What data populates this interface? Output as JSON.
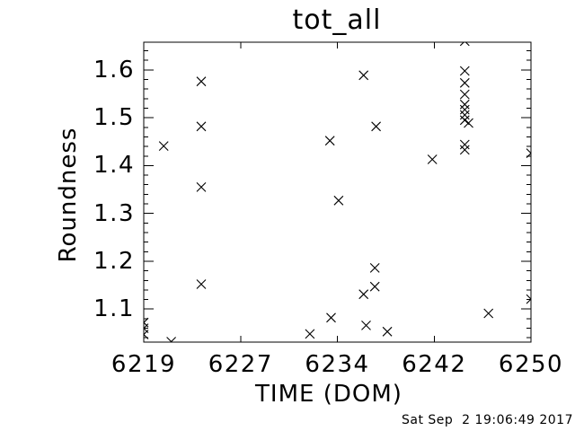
{
  "window": {
    "background_color": "#ffffff",
    "foreground_color": "#000000"
  },
  "chart_data": {
    "type": "scatter",
    "title": "tot_all",
    "xlabel": "TIME (DOM)",
    "ylabel": "Roundness",
    "xlim": [
      6219,
      6250
    ],
    "ylim": [
      1.031,
      1.658
    ],
    "grid": false,
    "legend": "none",
    "marker": "x",
    "marker_color": "#000000",
    "x_ticks": [
      {
        "value": 6219.0,
        "label": "6219"
      },
      {
        "value": 6226.75,
        "label": "6227"
      },
      {
        "value": 6234.5,
        "label": "6234"
      },
      {
        "value": 6242.25,
        "label": "6242"
      },
      {
        "value": 6250.0,
        "label": "6250"
      }
    ],
    "y_ticks": [
      {
        "value": 1.1,
        "label": "1.1"
      },
      {
        "value": 1.2,
        "label": "1.2"
      },
      {
        "value": 1.3,
        "label": "1.3"
      },
      {
        "value": 1.4,
        "label": "1.4"
      },
      {
        "value": 1.5,
        "label": "1.5"
      },
      {
        "value": 1.6,
        "label": "1.6"
      }
    ],
    "y_minor_step": 0.02,
    "points": [
      [
        6220.6,
        1.441
      ],
      [
        6223.6,
        1.576
      ],
      [
        6223.6,
        1.482
      ],
      [
        6223.6,
        1.355
      ],
      [
        6223.6,
        1.152
      ],
      [
        6219.0,
        1.072
      ],
      [
        6219.0,
        1.06
      ],
      [
        6219.0,
        1.047
      ],
      [
        6221.2,
        1.032
      ],
      [
        6232.3,
        1.048
      ],
      [
        6234.0,
        1.082
      ],
      [
        6233.9,
        1.452
      ],
      [
        6234.6,
        1.327
      ],
      [
        6236.6,
        1.589
      ],
      [
        6236.6,
        1.131
      ],
      [
        6236.8,
        1.066
      ],
      [
        6237.5,
        1.186
      ],
      [
        6237.5,
        1.147
      ],
      [
        6237.6,
        1.482
      ],
      [
        6238.5,
        1.053
      ],
      [
        6242.1,
        1.413
      ],
      [
        6244.7,
        1.66
      ],
      [
        6244.7,
        1.598
      ],
      [
        6244.7,
        1.573
      ],
      [
        6244.7,
        1.549
      ],
      [
        6244.7,
        1.528
      ],
      [
        6244.7,
        1.517
      ],
      [
        6244.7,
        1.506
      ],
      [
        6244.7,
        1.495
      ],
      [
        6245.0,
        1.489
      ],
      [
        6244.7,
        1.444
      ],
      [
        6244.7,
        1.433
      ],
      [
        6246.6,
        1.091
      ],
      [
        6250.0,
        1.426
      ],
      [
        6250.0,
        1.121
      ]
    ]
  },
  "footer": {
    "timestamp": "Sat Sep  2 19:06:49 2017"
  }
}
